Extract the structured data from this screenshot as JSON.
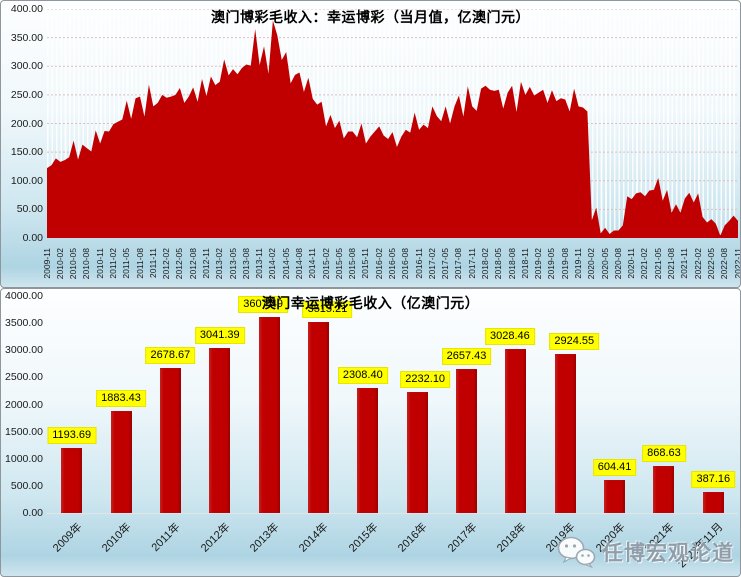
{
  "watermark": {
    "text": "任博宏观论道",
    "icon": "wechat-icon"
  },
  "colors": {
    "series_red": "#C00000",
    "data_label_bg": "#FFFF00",
    "gridline": "#dcbfbf",
    "background_top": "#fdfeff",
    "background_bottom": "#aed4e3"
  },
  "chart_data": [
    {
      "type": "area",
      "title": "澳门博彩毛收入：幸运博彩（当月值，亿澳门元）",
      "xlabel": "",
      "ylabel": "",
      "ylim": [
        0,
        400
      ],
      "grid": true,
      "legend_position": "none",
      "area_color": "#C00000",
      "y_ticks": [
        "400.00",
        "350.00",
        "300.00",
        "250.00",
        "200.00",
        "150.00",
        "100.00",
        "50.00",
        "0.00"
      ],
      "x_tick_labels": [
        "2009-11",
        "2010-02",
        "2010-05",
        "2010-08",
        "2010-11",
        "2011-02",
        "2011-05",
        "2011-08",
        "2011-11",
        "2012-02",
        "2012-05",
        "2012-08",
        "2012-11",
        "2013-02",
        "2013-05",
        "2013-08",
        "2013-11",
        "2014-02",
        "2014-05",
        "2014-08",
        "2014-11",
        "2015-02",
        "2015-05",
        "2015-08",
        "2015-11",
        "2016-02",
        "2016-05",
        "2016-08",
        "2016-11",
        "2017-02",
        "2017-05",
        "2017-08",
        "2017-11",
        "2018-02",
        "2018-05",
        "2018-08",
        "2018-11",
        "2019-02",
        "2019-05",
        "2019-08",
        "2019-11",
        "2020-02",
        "2020-05",
        "2020-08",
        "2020-11",
        "2021-02",
        "2021-05",
        "2021-08",
        "2021-11",
        "2022-02",
        "2022-05",
        "2022-08",
        "2022-11"
      ],
      "x_tick_interval_months": 3,
      "series": [
        {
          "name": "澳门博彩毛收入：幸运博彩（当月值）",
          "start": "2009-11",
          "end": "2022-11",
          "values": [
            122,
            127,
            139,
            133,
            136,
            141,
            170,
            137,
            163,
            157,
            151,
            188,
            165,
            187,
            186,
            199,
            203,
            207,
            240,
            208,
            244,
            247,
            212,
            268,
            230,
            236,
            250,
            245,
            247,
            250,
            262,
            236,
            247,
            263,
            238,
            278,
            248,
            282,
            267,
            273,
            312,
            284,
            295,
            286,
            297,
            303,
            301,
            365,
            302,
            335,
            287,
            380,
            354,
            311,
            325,
            270,
            285,
            289,
            255,
            280,
            243,
            233,
            238,
            195,
            215,
            192,
            205,
            174,
            186,
            186,
            176,
            200,
            165,
            177,
            186,
            195,
            179,
            173,
            185,
            159,
            177,
            189,
            184,
            219,
            189,
            198,
            192,
            230,
            213,
            204,
            230,
            200,
            230,
            249,
            212,
            265,
            230,
            222,
            261,
            266,
            259,
            257,
            259,
            226,
            254,
            266,
            220,
            273,
            250,
            264,
            249,
            254,
            259,
            236,
            258,
            239,
            244,
            242,
            221,
            261,
            230,
            228,
            221,
            31,
            53,
            8,
            18,
            7,
            13,
            13,
            22,
            73,
            68,
            78,
            80,
            73,
            83,
            84,
            105,
            65,
            84,
            44,
            59,
            44,
            69,
            79,
            62,
            78,
            37,
            27,
            33,
            25,
            4,
            22,
            30,
            39,
            30
          ]
        }
      ]
    },
    {
      "type": "bar",
      "title": "澳门幸运博彩毛收入（亿澳门元）",
      "xlabel": "",
      "ylabel": "",
      "ylim": [
        0,
        4000
      ],
      "grid": false,
      "legend_position": "none",
      "bar_color": "#C00000",
      "data_label_bg": "#FFFF00",
      "y_ticks": [
        "4000.00",
        "3500.00",
        "3000.00",
        "2500.00",
        "2000.00",
        "1500.00",
        "1000.00",
        "500.00",
        "0.00"
      ],
      "categories": [
        "2009年",
        "2010年",
        "2011年",
        "2012年",
        "2013年",
        "2014年",
        "2015年",
        "2016年",
        "2017年",
        "2018年",
        "2019年",
        "2020年",
        "2021年",
        "2022年11月"
      ],
      "values": [
        1193.69,
        1883.43,
        2678.67,
        3041.39,
        3607.49,
        3515.21,
        2308.4,
        2232.1,
        2657.43,
        3028.46,
        2924.55,
        604.41,
        868.63,
        387.16
      ],
      "data_labels": [
        "1193.69",
        "1883.43",
        "2678.67",
        "3041.39",
        "3607.49",
        "3515.21",
        "2308.40",
        "2232.10",
        "2657.43",
        "3028.46",
        "2924.55",
        "604.41",
        "868.63",
        "387.16"
      ]
    }
  ]
}
